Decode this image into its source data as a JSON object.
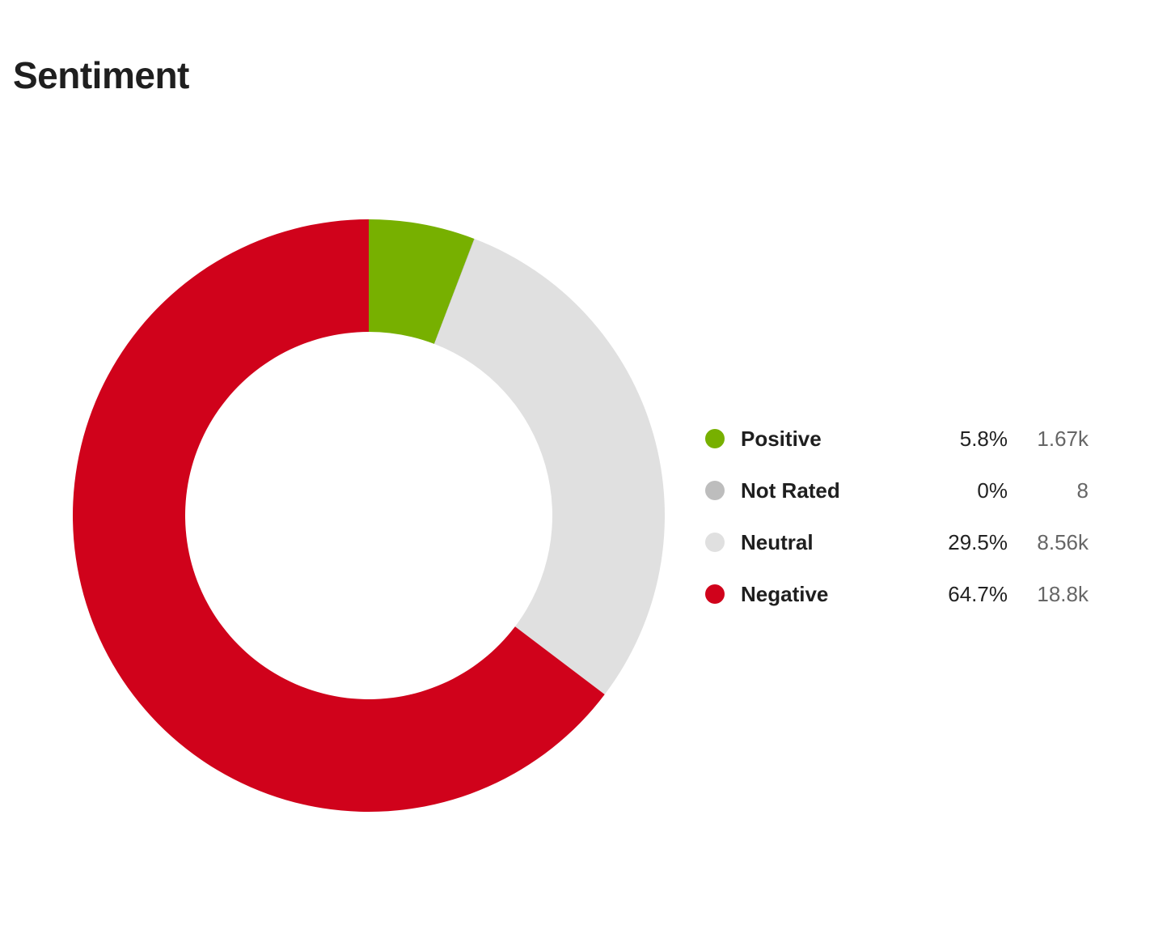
{
  "chart_data": {
    "type": "pie",
    "title": "Sentiment",
    "donut": true,
    "start_angle_deg": 0,
    "direction": "clockwise",
    "slices": [
      {
        "name": "Positive",
        "percent": 5.8,
        "percent_label": "5.8%",
        "count": 1670,
        "count_label": "1.67k",
        "color": "#77b000"
      },
      {
        "name": "Not Rated",
        "percent": 0.03,
        "percent_label": "0%",
        "count": 8,
        "count_label": "8",
        "color": "#bdbdbd"
      },
      {
        "name": "Neutral",
        "percent": 29.5,
        "percent_label": "29.5%",
        "count": 8560,
        "count_label": "8.56k",
        "color": "#e0e0e0"
      },
      {
        "name": "Negative",
        "percent": 64.7,
        "percent_label": "64.7%",
        "count": 18800,
        "count_label": "18.8k",
        "color": "#d0021b"
      }
    ],
    "legend_position": "right"
  }
}
